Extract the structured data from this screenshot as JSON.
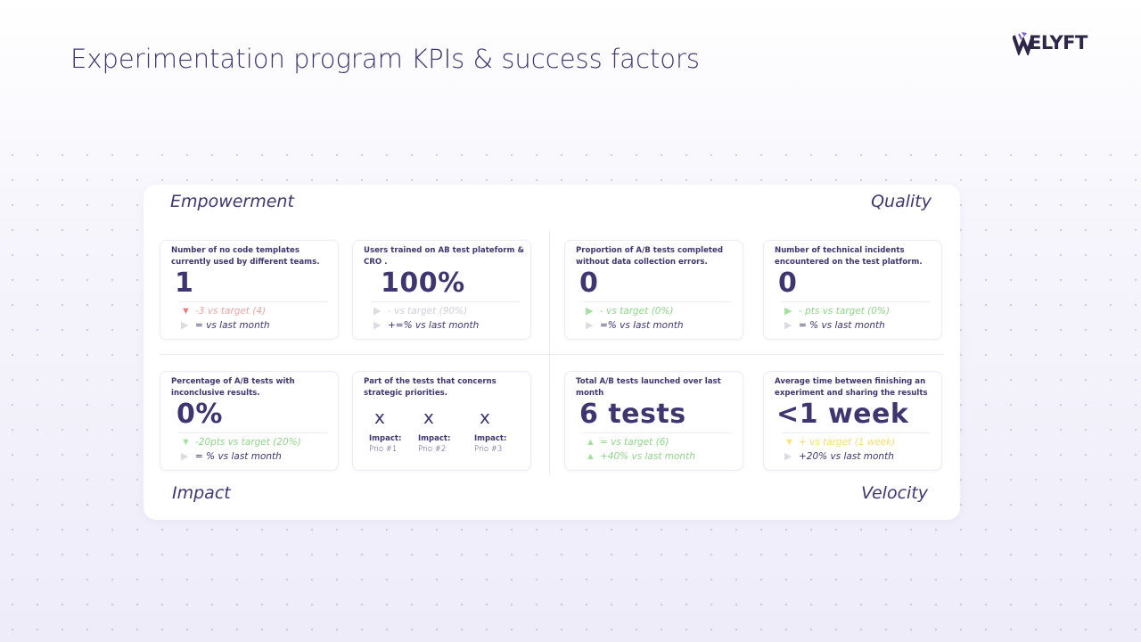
{
  "slide": {
    "title": "Experimentation program KPIs & success factors",
    "logo_text": "ELYFT"
  },
  "quadrants": {
    "top_left": "Empowerment",
    "top_right": "Quality",
    "bottom_left": "Impact",
    "bottom_right": "Velocity"
  },
  "kpis": {
    "templates": {
      "description": "Number of no code templates currently used by different teams.",
      "value": "1",
      "target": "-3 vs target (4)",
      "last_month": "= vs last month"
    },
    "users_trained": {
      "description": "Users trained on AB test plateform & CRO .",
      "value": "100%",
      "target": "- vs target (90%)",
      "last_month": "+=% vs last month"
    },
    "data_errors": {
      "description": "Proportion of A/B tests completed without data collection errors.",
      "value": "0",
      "target": "- vs target (0%)",
      "last_month": "=% vs last month"
    },
    "incidents": {
      "description": "Number of technical incidents encountered on the test platform.",
      "value": "0",
      "target": "- pts vs target (0%)",
      "last_month": "= % vs last month"
    },
    "inconclusive": {
      "description": "Percentage of A/B tests with inconclusive results.",
      "value": "0%",
      "target": "-20pts vs target (20%)",
      "last_month": "= % vs last month"
    },
    "strategic": {
      "description": "Part of the tests that concerns strategic priorities.",
      "priorities": [
        {
          "mark": "x",
          "label": "Impact:",
          "sub": "Prio #1"
        },
        {
          "mark": "x",
          "label": "Impact:",
          "sub": "Prio #2"
        },
        {
          "mark": "x",
          "label": "Impact:",
          "sub": "Prio #3"
        }
      ]
    },
    "tests_launched": {
      "description": "Total A/B tests launched over last month",
      "value": "6 tests",
      "target": "= vs target (6)",
      "last_month": "+40% vs last month"
    },
    "time_to_share": {
      "description": "Average time between finishing an experiment and sharing the results",
      "value": "<1 week",
      "target": "+ vs target (1 week)",
      "last_month": "+20% vs last month"
    }
  },
  "colors": {
    "primary": "#3f3670",
    "positive": "#8ed588",
    "negative": "#ef7a76",
    "warning": "#f7e37a",
    "neutral": "#dcdbe3",
    "logo_accent": "#7a5fcf"
  },
  "icons": {
    "trend_down": "triangle-down-icon",
    "trend_up": "triangle-up-icon",
    "trend_flat": "triangle-right-icon"
  }
}
